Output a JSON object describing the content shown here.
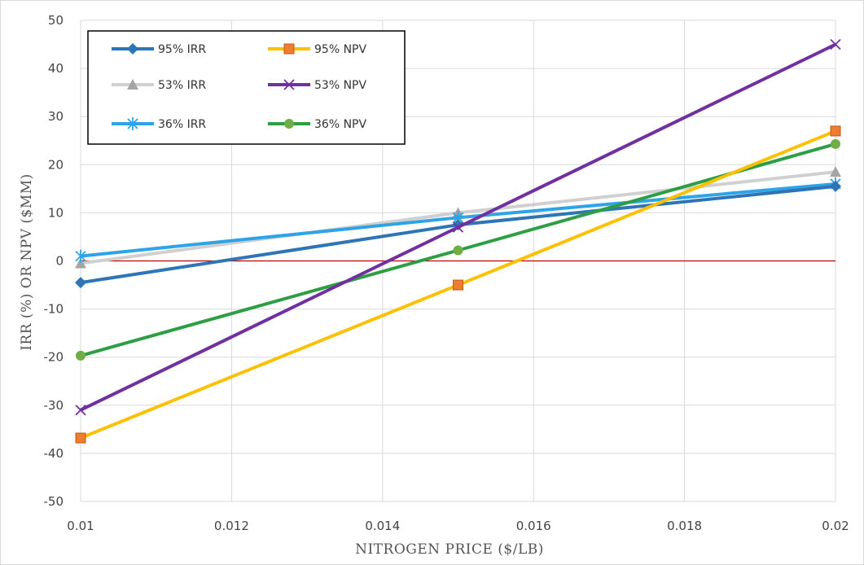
{
  "chart_data": {
    "type": "line",
    "xlabel": "NITROGEN  PRICE  ($/LB)",
    "ylabel": "IRR (%) OR NPV  ($MM)",
    "x": [
      0.01,
      0.015,
      0.02
    ],
    "xlim": [
      0.01,
      0.02
    ],
    "ylim": [
      -50,
      50
    ],
    "x_ticks": [
      "0.01",
      "0.012",
      "0.014",
      "0.016",
      "0.018",
      "0.02"
    ],
    "x_tick_values": [
      0.01,
      0.012,
      0.014,
      0.016,
      0.018,
      0.02
    ],
    "y_ticks": [
      "50",
      "40",
      "30",
      "20",
      "10",
      "0",
      "-10",
      "-20",
      "-30",
      "-40",
      "-50"
    ],
    "y_tick_values": [
      50,
      40,
      30,
      20,
      10,
      0,
      -10,
      -20,
      -30,
      -40,
      -50
    ],
    "grid": true,
    "legend_position": "top-left",
    "zero_line_color": "#c00000",
    "series": [
      {
        "name": "95% IRR",
        "values": [
          -4.5,
          7.5,
          15.5
        ],
        "color": "#2e75b6",
        "marker": "diamond"
      },
      {
        "name": "95% NPV",
        "values": [
          -36.8,
          -5.0,
          27.0
        ],
        "color": "#ffc000",
        "marker_color": "#ed7d31",
        "marker": "square"
      },
      {
        "name": "53% IRR",
        "values": [
          -0.5,
          10.0,
          18.5
        ],
        "color": "#d0d0d0",
        "marker_color": "#a5a5a5",
        "marker": "triangle"
      },
      {
        "name": "53% NPV",
        "values": [
          -31.0,
          7.0,
          45.0
        ],
        "color": "#7030a0",
        "marker": "x"
      },
      {
        "name": "36% IRR",
        "values": [
          1.0,
          9.0,
          16.0
        ],
        "color": "#2ea3e8",
        "marker": "star"
      },
      {
        "name": "36% NPV",
        "values": [
          -19.7,
          2.2,
          24.3
        ],
        "color": "#2e9e44",
        "marker_color": "#70ad47",
        "marker": "circle"
      }
    ],
    "legend_order": [
      0,
      1,
      2,
      3,
      4,
      5
    ]
  }
}
